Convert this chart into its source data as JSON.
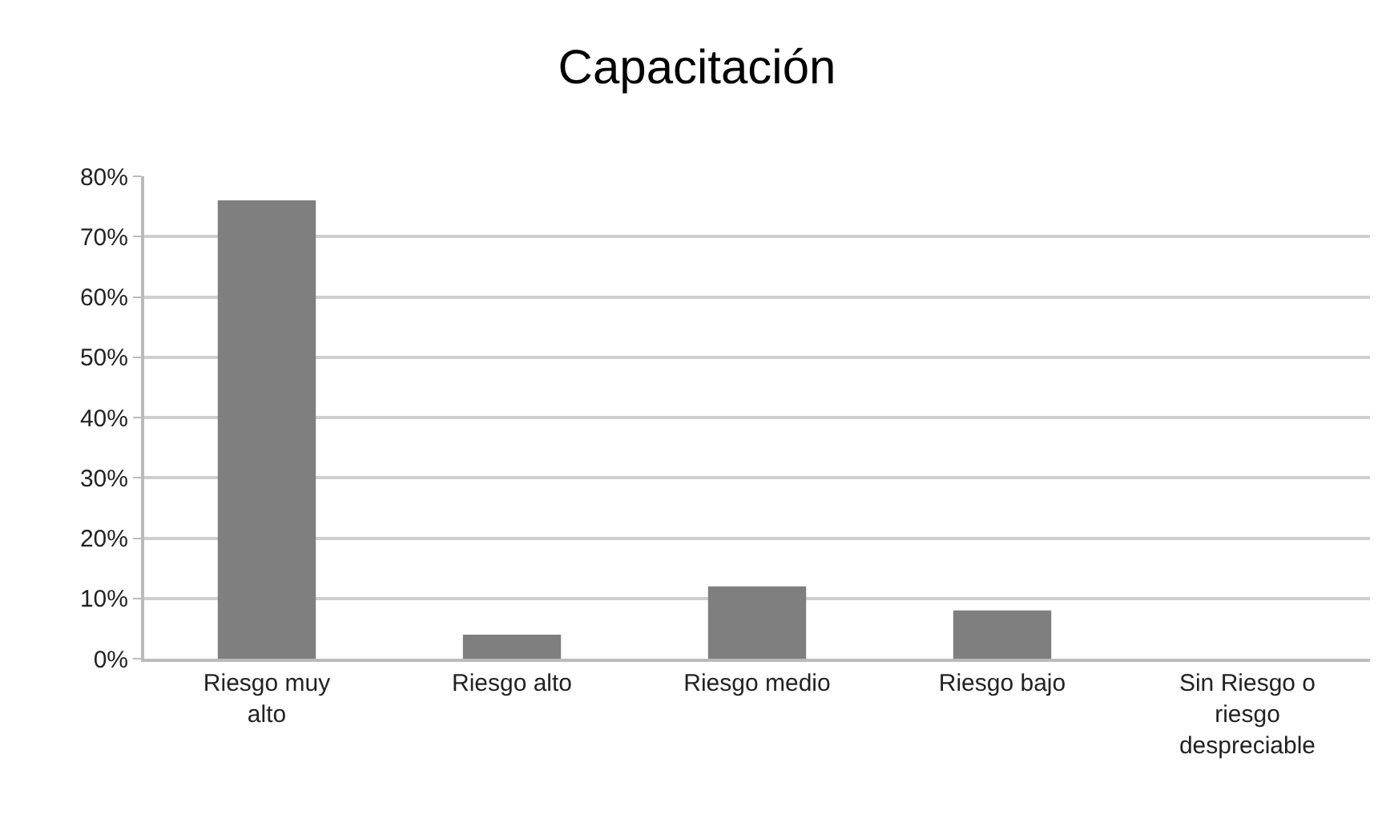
{
  "chart_data": {
    "type": "bar",
    "title": "Capacitación",
    "categories": [
      "Riesgo muy alto",
      "Riesgo alto",
      "Riesgo medio",
      "Riesgo bajo",
      "Sin Riesgo o riesgo despreciable"
    ],
    "values": [
      76,
      4,
      12,
      8,
      0
    ],
    "color": "#7f7f7f",
    "ylim": [
      0,
      80
    ],
    "yticks": [
      {
        "value": 0,
        "label": "0%"
      },
      {
        "value": 10,
        "label": "10%"
      },
      {
        "value": 20,
        "label": "20%"
      },
      {
        "value": 30,
        "label": "30%"
      },
      {
        "value": 40,
        "label": "40%"
      },
      {
        "value": 50,
        "label": "50%"
      },
      {
        "value": 60,
        "label": "60%"
      },
      {
        "value": 70,
        "label": "70%"
      },
      {
        "value": 80,
        "label": "80%"
      }
    ],
    "grid": "y"
  }
}
